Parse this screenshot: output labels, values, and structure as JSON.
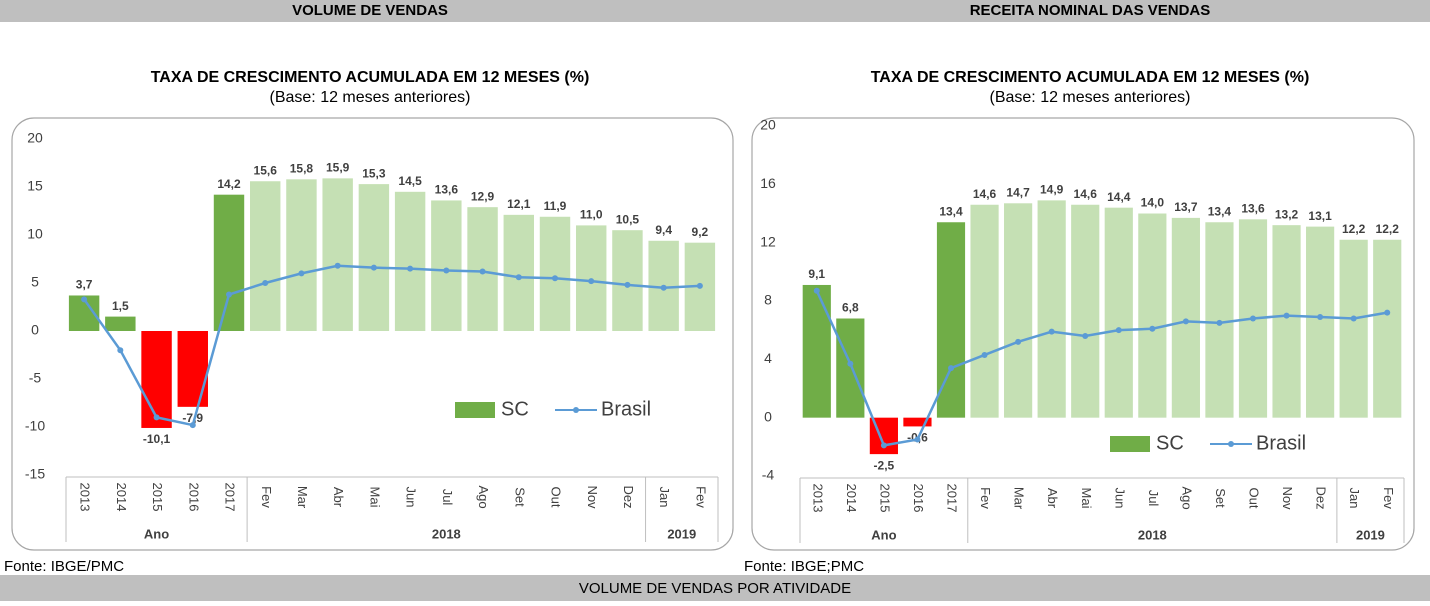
{
  "chart_data": [
    {
      "type": "bar",
      "section": "VOLUME DE VENDAS",
      "title": "TAXA DE CRESCIMENTO ACUMULADA EM 12 MESES (%)",
      "subtitle": "(Base: 12 meses anteriores)",
      "source": "Fonte: IBGE/PMC",
      "categories": [
        "2013",
        "2014",
        "2015",
        "2016",
        "2017",
        "Fev",
        "Mar",
        "Abr",
        "Mai",
        "Jun",
        "Jul",
        "Ago",
        "Set",
        "Out",
        "Nov",
        "Dez",
        "Jan",
        "Fev"
      ],
      "groups": [
        {
          "label": "Ano",
          "count": 5
        },
        {
          "label": "2018",
          "count": 11
        },
        {
          "label": "2019",
          "count": 2
        }
      ],
      "series": [
        {
          "name": "SC",
          "color": "#70ad47",
          "colors": [
            "#70ad47",
            "#70ad47",
            "#ff0000",
            "#ff0000",
            "#70ad47",
            "#c5e0b4",
            "#c5e0b4",
            "#c5e0b4",
            "#c5e0b4",
            "#c5e0b4",
            "#c5e0b4",
            "#c5e0b4",
            "#c5e0b4",
            "#c5e0b4",
            "#c5e0b4",
            "#c5e0b4",
            "#c5e0b4",
            "#c5e0b4"
          ],
          "values": [
            3.7,
            1.5,
            -10.1,
            -7.9,
            14.2,
            15.6,
            15.8,
            15.9,
            15.3,
            14.5,
            13.6,
            12.9,
            12.1,
            11.9,
            11.0,
            10.5,
            9.4,
            9.2
          ],
          "value_labels": [
            "3,7",
            "1,5",
            "-10,1",
            "-7,9",
            "14,2",
            "15,6",
            "15,8",
            "15,9",
            "15,3",
            "14,5",
            "13,6",
            "12,9",
            "12,1",
            "11,9",
            "11,0",
            "10,5",
            "9,4",
            "9,2"
          ]
        },
        {
          "name": "Brasil",
          "type": "line",
          "color": "#5b9bd5",
          "values": [
            3.3,
            -2.0,
            -9.0,
            -9.8,
            3.8,
            5.0,
            6.0,
            6.8,
            6.6,
            6.5,
            6.3,
            6.2,
            5.6,
            5.5,
            5.2,
            4.8,
            4.5,
            4.7
          ]
        }
      ],
      "ylim": [
        -15,
        20
      ],
      "yticks": [
        -15,
        -10,
        -5,
        0,
        5,
        10,
        15,
        20
      ]
    },
    {
      "type": "bar",
      "section": "RECEITA NOMINAL DAS VENDAS",
      "title": "TAXA DE CRESCIMENTO ACUMULADA EM 12 MESES (%)",
      "subtitle": "(Base: 12 meses anteriores)",
      "source": "Fonte: IBGE;PMC",
      "categories": [
        "2013",
        "2014",
        "2015",
        "2016",
        "2017",
        "Fev",
        "Mar",
        "Abr",
        "Mai",
        "Jun",
        "Jul",
        "Ago",
        "Set",
        "Out",
        "Nov",
        "Dez",
        "Jan",
        "Fev"
      ],
      "groups": [
        {
          "label": "Ano",
          "count": 5
        },
        {
          "label": "2018",
          "count": 11
        },
        {
          "label": "2019",
          "count": 2
        }
      ],
      "series": [
        {
          "name": "SC",
          "color": "#70ad47",
          "colors": [
            "#70ad47",
            "#70ad47",
            "#ff0000",
            "#ff0000",
            "#70ad47",
            "#c5e0b4",
            "#c5e0b4",
            "#c5e0b4",
            "#c5e0b4",
            "#c5e0b4",
            "#c5e0b4",
            "#c5e0b4",
            "#c5e0b4",
            "#c5e0b4",
            "#c5e0b4",
            "#c5e0b4",
            "#c5e0b4",
            "#c5e0b4"
          ],
          "values": [
            9.1,
            6.8,
            -2.5,
            -0.6,
            13.4,
            14.6,
            14.7,
            14.9,
            14.6,
            14.4,
            14.0,
            13.7,
            13.4,
            13.6,
            13.2,
            13.1,
            12.2,
            12.2
          ],
          "value_labels": [
            "9,1",
            "6,8",
            "-2,5",
            "-0,6",
            "13,4",
            "14,6",
            "14,7",
            "14,9",
            "14,6",
            "14,4",
            "14,0",
            "13,7",
            "13,4",
            "13,6",
            "13,2",
            "13,1",
            "12,2",
            "12,2"
          ]
        },
        {
          "name": "Brasil",
          "type": "line",
          "color": "#5b9bd5",
          "values": [
            8.7,
            3.7,
            -1.9,
            -1.5,
            3.4,
            4.3,
            5.2,
            5.9,
            5.6,
            6.0,
            6.1,
            6.6,
            6.5,
            6.8,
            7.0,
            6.9,
            6.8,
            7.2
          ]
        }
      ],
      "ylim": [
        -4,
        20
      ],
      "yticks": [
        -4,
        0,
        4,
        8,
        12,
        16,
        20
      ]
    }
  ],
  "footer": "VOLUME DE VENDAS POR ATIVIDADE"
}
